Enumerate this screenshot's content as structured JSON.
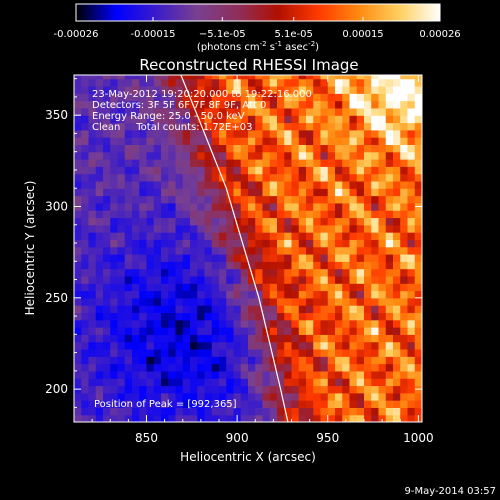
{
  "chart_data": {
    "type": "heatmap",
    "title": "Reconstructed RHESSI Image",
    "xlabel": "Heliocentric X (arcsec)",
    "ylabel": "Heliocentric Y (arcsec)",
    "xlim": [
      810,
      1002
    ],
    "ylim": [
      182,
      372
    ],
    "x_ticks": [
      850,
      900,
      950,
      1000
    ],
    "y_ticks": [
      200,
      250,
      300,
      350
    ],
    "colorbar": {
      "range": [
        -0.00026,
        0.00026
      ],
      "tick_values": [
        -0.00026,
        -0.00015,
        -5.1e-05,
        5.1e-05,
        0.00015,
        0.00026
      ],
      "tick_labels": [
        "-0.00026",
        "-0.00015",
        "−5.1e-05",
        "5.1e-05",
        "0.00015",
        "0.00026"
      ],
      "units_label": "(photons cm",
      "units_exp1": "-2",
      "units_mid": " s",
      "units_exp2": "-1",
      "units_mid2": " asec",
      "units_exp3": "-2",
      "units_close": ")",
      "colors": [
        "#000000",
        "#0000ff",
        "#3b1cc8",
        "#7a4090",
        "#8e2f5a",
        "#b01000",
        "#ff3a00",
        "#ff8a10",
        "#ffd060",
        "#ffffff"
      ]
    },
    "annotations": [
      "23-May-2012 19:20:20.000 to 19:22:16.000",
      "Detectors: 3F 5F 6F 7F 8F 9F, Att 0",
      "Energy Range: 25.0 - 50.0 keV",
      "Clean     Total counts: 1.72E+03"
    ],
    "peak_label": "Position of Peak = [992,365]",
    "limb_curve": {
      "x": [
        869,
        878,
        886,
        894,
        900,
        906,
        912,
        918,
        924,
        928
      ],
      "y": [
        372,
        350,
        330,
        310,
        290,
        270,
        250,
        225,
        200,
        182
      ]
    },
    "grid": false,
    "grid_resolution_arcsec": 4
  },
  "footer": {
    "timestamp": "9-May-2014 03:57"
  }
}
